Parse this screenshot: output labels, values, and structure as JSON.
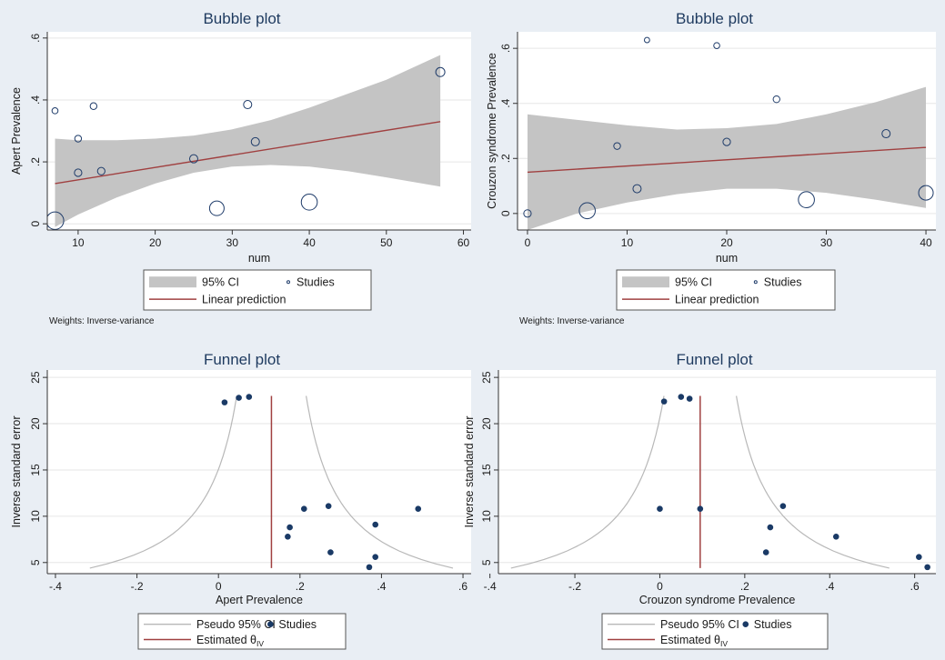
{
  "chart_data": [
    {
      "type": "scatter",
      "title": "Bubble plot",
      "xlabel": "num",
      "ylabel": "Apert Prevalence",
      "xlim": [
        6,
        61
      ],
      "ylim": [
        -0.02,
        0.62
      ],
      "xticks": [
        10,
        20,
        30,
        40,
        50,
        60
      ],
      "xtick_labels": [
        "10",
        "20",
        "30",
        "40",
        "50",
        "60"
      ],
      "yticks": [
        0,
        0.2,
        0.4,
        0.6
      ],
      "ytick_labels": [
        "0",
        ".2",
        ".4",
        ".6"
      ],
      "studies": [
        {
          "x": 7,
          "y": 0.01,
          "w": 9
        },
        {
          "x": 7,
          "y": 0.365,
          "w": 1.5
        },
        {
          "x": 10,
          "y": 0.275,
          "w": 2
        },
        {
          "x": 10,
          "y": 0.165,
          "w": 2.5
        },
        {
          "x": 12,
          "y": 0.38,
          "w": 2
        },
        {
          "x": 13,
          "y": 0.17,
          "w": 2.5
        },
        {
          "x": 25,
          "y": 0.21,
          "w": 3
        },
        {
          "x": 28,
          "y": 0.05,
          "w": 7
        },
        {
          "x": 32,
          "y": 0.385,
          "w": 3
        },
        {
          "x": 33,
          "y": 0.265,
          "w": 3
        },
        {
          "x": 40,
          "y": 0.07,
          "w": 8
        },
        {
          "x": 57,
          "y": 0.49,
          "w": 3.5
        }
      ],
      "fit_line": {
        "x": [
          7,
          57
        ],
        "y": [
          0.13,
          0.33
        ]
      },
      "ci_band": {
        "x": [
          7,
          10,
          15,
          20,
          25,
          30,
          35,
          40,
          45,
          50,
          57
        ],
        "upper": [
          0.275,
          0.27,
          0.27,
          0.275,
          0.285,
          0.305,
          0.335,
          0.375,
          0.42,
          0.465,
          0.545
        ],
        "lower": [
          -0.01,
          0.03,
          0.085,
          0.13,
          0.165,
          0.185,
          0.19,
          0.185,
          0.17,
          0.15,
          0.12
        ]
      },
      "legend": [
        {
          "label": "95% CI",
          "kind": "band"
        },
        {
          "label": "Studies",
          "kind": "point"
        },
        {
          "label": "Linear prediction",
          "kind": "line"
        }
      ],
      "note": "Weights: Inverse-variance"
    },
    {
      "type": "scatter",
      "title": "Bubble plot",
      "xlabel": "num",
      "ylabel": "Crouzon syndrome Prevalence",
      "xlim": [
        -1,
        41
      ],
      "ylim": [
        -0.06,
        0.66
      ],
      "xticks": [
        0,
        10,
        20,
        30,
        40
      ],
      "xtick_labels": [
        "0",
        "10",
        "20",
        "30",
        "40"
      ],
      "yticks": [
        0,
        0.2,
        0.4,
        0.6
      ],
      "ytick_labels": [
        "0",
        ".2",
        ".4",
        ".6"
      ],
      "studies": [
        {
          "x": 0,
          "y": 0.0,
          "w": 2.5
        },
        {
          "x": 6,
          "y": 0.01,
          "w": 8
        },
        {
          "x": 9,
          "y": 0.245,
          "w": 2
        },
        {
          "x": 11,
          "y": 0.09,
          "w": 3
        },
        {
          "x": 12,
          "y": 0.63,
          "w": 1
        },
        {
          "x": 19,
          "y": 0.61,
          "w": 1.5
        },
        {
          "x": 20,
          "y": 0.26,
          "w": 2.5
        },
        {
          "x": 25,
          "y": 0.415,
          "w": 2
        },
        {
          "x": 28,
          "y": 0.05,
          "w": 8
        },
        {
          "x": 36,
          "y": 0.29,
          "w": 3
        },
        {
          "x": 40,
          "y": 0.075,
          "w": 7
        }
      ],
      "fit_line": {
        "x": [
          0,
          40
        ],
        "y": [
          0.15,
          0.24
        ]
      },
      "ci_band": {
        "x": [
          0,
          5,
          10,
          15,
          20,
          25,
          30,
          35,
          40
        ],
        "upper": [
          0.36,
          0.34,
          0.32,
          0.305,
          0.31,
          0.325,
          0.36,
          0.405,
          0.46
        ],
        "lower": [
          -0.06,
          0.0,
          0.04,
          0.07,
          0.09,
          0.09,
          0.075,
          0.05,
          0.02
        ]
      },
      "legend": [
        {
          "label": "95% CI",
          "kind": "band"
        },
        {
          "label": "Studies",
          "kind": "point"
        },
        {
          "label": "Linear prediction",
          "kind": "line"
        }
      ],
      "note": "Weights: Inverse-variance"
    },
    {
      "type": "scatter",
      "title": "Funnel plot",
      "xlabel": "Apert Prevalence",
      "ylabel": "Inverse standard error",
      "xlim": [
        -0.42,
        0.62
      ],
      "ylim": [
        3.8,
        25.8
      ],
      "xticks": [
        -0.4,
        -0.2,
        0,
        0.2,
        0.4,
        0.6
      ],
      "xtick_labels": [
        "-.4",
        "-.2",
        "0",
        ".2",
        ".4",
        ".6"
      ],
      "yticks": [
        5,
        10,
        15,
        20,
        25
      ],
      "ytick_labels": [
        "5",
        "10",
        "15",
        "20",
        "25"
      ],
      "studies": [
        {
          "x": 0.015,
          "y": 22.3
        },
        {
          "x": 0.05,
          "y": 22.8
        },
        {
          "x": 0.075,
          "y": 22.9
        },
        {
          "x": 0.17,
          "y": 7.8
        },
        {
          "x": 0.175,
          "y": 8.8
        },
        {
          "x": 0.21,
          "y": 10.8
        },
        {
          "x": 0.27,
          "y": 11.1
        },
        {
          "x": 0.275,
          "y": 6.1
        },
        {
          "x": 0.385,
          "y": 9.1
        },
        {
          "x": 0.385,
          "y": 5.6
        },
        {
          "x": 0.37,
          "y": 4.5
        },
        {
          "x": 0.49,
          "y": 10.8
        }
      ],
      "estimate": 0.13,
      "estimate_ymax": 23,
      "pseudo_ci_ymin": 4.4,
      "legend": [
        {
          "label": "Pseudo 95% CI",
          "kind": "curve"
        },
        {
          "label": "Studies",
          "kind": "dot"
        },
        {
          "label": "Estimated θ",
          "sub": "IV",
          "kind": "vline"
        }
      ]
    },
    {
      "type": "scatter",
      "title": "Funnel plot",
      "xlabel": "Crouzon syndrome Prevalence",
      "ylabel": "Inverse standard error",
      "xlim": [
        -0.38,
        0.65
      ],
      "ylim": [
        3.8,
        25.8
      ],
      "xticks": [
        -0.4,
        -0.2,
        0,
        0.2,
        0.4,
        0.6
      ],
      "xtick_labels": [
        "-.4",
        "-.2",
        "0",
        ".2",
        ".4",
        ".6"
      ],
      "yticks": [
        5,
        10,
        15,
        20,
        25
      ],
      "ytick_labels": [
        "5",
        "10",
        "15",
        "20",
        "25"
      ],
      "studies": [
        {
          "x": 0.01,
          "y": 22.4
        },
        {
          "x": 0.05,
          "y": 22.9
        },
        {
          "x": 0.07,
          "y": 22.7
        },
        {
          "x": 0.0,
          "y": 10.8
        },
        {
          "x": 0.095,
          "y": 10.8
        },
        {
          "x": 0.25,
          "y": 6.1
        },
        {
          "x": 0.26,
          "y": 8.8
        },
        {
          "x": 0.29,
          "y": 11.1
        },
        {
          "x": 0.415,
          "y": 7.8
        },
        {
          "x": 0.61,
          "y": 5.6
        },
        {
          "x": 0.63,
          "y": 4.5
        }
      ],
      "estimate": 0.095,
      "estimate_ymax": 23,
      "pseudo_ci_ymin": 4.4,
      "legend": [
        {
          "label": "Pseudo 95% CI",
          "kind": "curve"
        },
        {
          "label": "Studies",
          "kind": "dot"
        },
        {
          "label": "Estimated θ",
          "sub": "IV",
          "kind": "vline"
        }
      ]
    }
  ],
  "colors": {
    "background": "#e9eef4",
    "plot_area": "#ffffff",
    "band": "#c4c4c4",
    "fit_line": "#a04040",
    "bubble_stroke": "#1f3c6a",
    "dot": "#1a3a66",
    "funnel_curve": "#b8b8b8",
    "title": "#1e3a5f"
  }
}
